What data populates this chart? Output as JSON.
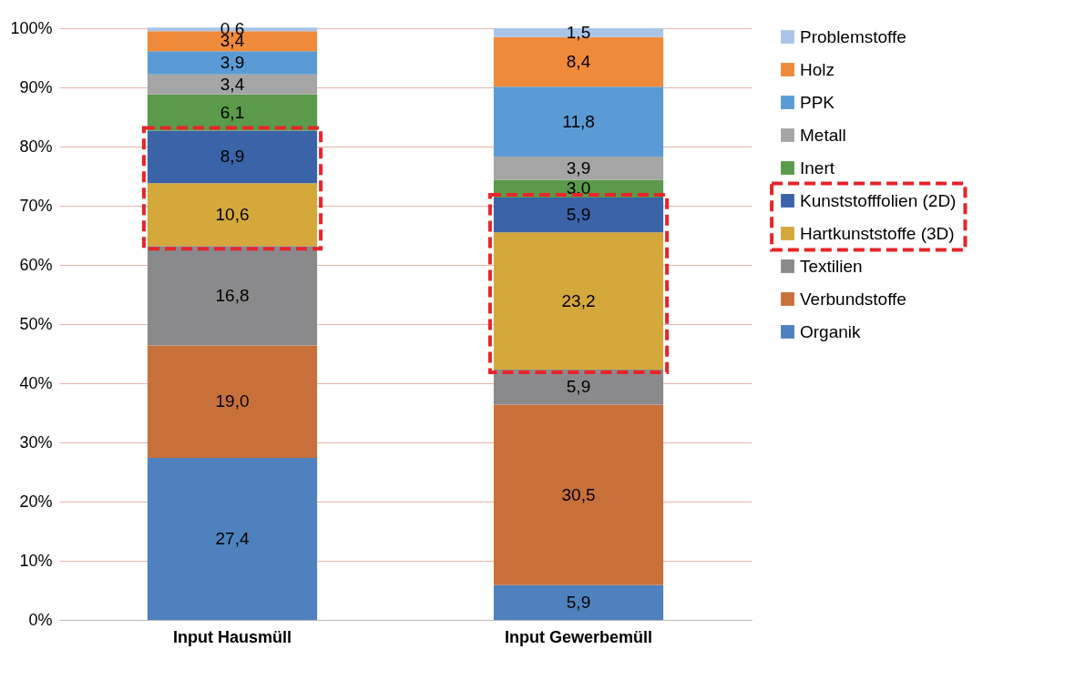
{
  "chart_data": {
    "type": "bar",
    "stacked": true,
    "categories": [
      "Input Hausmüll",
      "Input Gewerbemüll"
    ],
    "ylim": [
      0,
      100
    ],
    "yticks": [
      {
        "value": 0,
        "label": "0%"
      },
      {
        "value": 10,
        "label": "10%"
      },
      {
        "value": 20,
        "label": "20%"
      },
      {
        "value": 30,
        "label": "30%"
      },
      {
        "value": 40,
        "label": "40%"
      },
      {
        "value": 50,
        "label": "50%"
      },
      {
        "value": 60,
        "label": "60%"
      },
      {
        "value": 70,
        "label": "70%"
      },
      {
        "value": 80,
        "label": "80%"
      },
      {
        "value": 90,
        "label": "90%"
      },
      {
        "value": 100,
        "label": "100%"
      }
    ],
    "grid": "y",
    "legend": "right",
    "series": [
      {
        "name": "Organik",
        "color": "#4e81bd",
        "values": [
          27.4,
          5.9
        ],
        "value_labels": [
          "27,4",
          "5,9"
        ]
      },
      {
        "name": "Verbundstoffe",
        "color": "#c8703a",
        "values": [
          19.0,
          30.5
        ],
        "value_labels": [
          "19,0",
          "30,5"
        ]
      },
      {
        "name": "Textilien",
        "color": "#8a8a8c",
        "values": [
          16.8,
          5.9
        ],
        "value_labels": [
          "16,8",
          "5,9"
        ]
      },
      {
        "name": "Hartkunststoffe (3D)",
        "color": "#d4a83a",
        "values": [
          10.6,
          23.2
        ],
        "value_labels": [
          "10,6",
          "23,2"
        ],
        "line_style": "dashed"
      },
      {
        "name": "Kunststofffolien (2D)",
        "color": "#3a63a8",
        "values": [
          8.9,
          5.9
        ],
        "value_labels": [
          "8,9",
          "5,9"
        ],
        "line_style": "dashed"
      },
      {
        "name": "Inert",
        "color": "#5a9a4a",
        "values": [
          6.1,
          3.0
        ],
        "value_labels": [
          "6,1",
          "3,0"
        ]
      },
      {
        "name": "Metall",
        "color": "#a5a5a5",
        "values": [
          3.4,
          3.9
        ],
        "value_labels": [
          "3,4",
          "3,9"
        ]
      },
      {
        "name": "PPK",
        "color": "#5b9bd5",
        "values": [
          3.9,
          11.8
        ],
        "value_labels": [
          "3,9",
          "11,8"
        ]
      },
      {
        "name": "Holz",
        "color": "#ee8a3a",
        "values": [
          3.4,
          8.4
        ],
        "value_labels": [
          "3,4",
          "8,4"
        ]
      },
      {
        "name": "Problemstoffe",
        "color": "#a9c4e6",
        "values": [
          0.6,
          1.5
        ],
        "value_labels": [
          "0,6",
          "1,5"
        ]
      }
    ]
  }
}
